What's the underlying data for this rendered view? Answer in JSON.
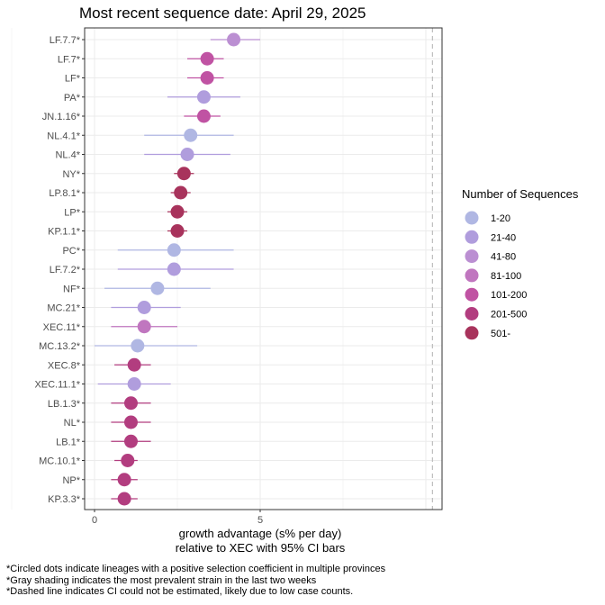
{
  "chart_data": {
    "type": "scatter",
    "title": "Most recent sequence date: April 29, 2025",
    "xlabel_lines": [
      "growth advantage (s% per day)",
      "relative to  XEC  with 95% CI bars"
    ],
    "xticks": [
      0,
      5
    ],
    "xlim": [
      -0.3,
      10.7
    ],
    "dashed_line_x": 10.2,
    "grid": true,
    "legend": {
      "title": "Number of Sequences",
      "position": "right",
      "items": [
        {
          "label": "1-20",
          "color": "#b0b7e3"
        },
        {
          "label": "21-40",
          "color": "#b09ddd"
        },
        {
          "label": "41-80",
          "color": "#bb8fd2"
        },
        {
          "label": "81-100",
          "color": "#c076bf"
        },
        {
          "label": "101-200",
          "color": "#c053a3"
        },
        {
          "label": "201-500",
          "color": "#b23d7f"
        },
        {
          "label": "501-",
          "color": "#a8335c"
        }
      ]
    },
    "lineages": [
      {
        "label": "LF.7.7*",
        "x": 4.2,
        "lo": 3.5,
        "hi": 5.0,
        "group": 2
      },
      {
        "label": "LF.7*",
        "x": 3.4,
        "lo": 2.8,
        "hi": 3.9,
        "group": 4
      },
      {
        "label": "LF*",
        "x": 3.4,
        "lo": 2.8,
        "hi": 3.9,
        "group": 4
      },
      {
        "label": "PA*",
        "x": 3.3,
        "lo": 2.2,
        "hi": 4.4,
        "group": 1
      },
      {
        "label": "JN.1.16*",
        "x": 3.3,
        "lo": 2.7,
        "hi": 3.8,
        "group": 4
      },
      {
        "label": "NL.4.1*",
        "x": 2.9,
        "lo": 1.5,
        "hi": 4.2,
        "group": 0
      },
      {
        "label": "NL.4*",
        "x": 2.8,
        "lo": 1.5,
        "hi": 4.1,
        "group": 1
      },
      {
        "label": "NY*",
        "x": 2.7,
        "lo": 2.4,
        "hi": 3.0,
        "group": 6
      },
      {
        "label": "LP.8.1*",
        "x": 2.6,
        "lo": 2.3,
        "hi": 2.9,
        "group": 6
      },
      {
        "label": "LP*",
        "x": 2.5,
        "lo": 2.2,
        "hi": 2.8,
        "group": 6
      },
      {
        "label": "KP.1.1*",
        "x": 2.5,
        "lo": 2.2,
        "hi": 2.8,
        "group": 6
      },
      {
        "label": "PC*",
        "x": 2.4,
        "lo": 0.7,
        "hi": 4.2,
        "group": 0
      },
      {
        "label": "LF.7.2*",
        "x": 2.4,
        "lo": 0.7,
        "hi": 4.2,
        "group": 1
      },
      {
        "label": "NF*",
        "x": 1.9,
        "lo": 0.3,
        "hi": 3.5,
        "group": 0
      },
      {
        "label": "MC.21*",
        "x": 1.5,
        "lo": 0.5,
        "hi": 2.6,
        "group": 1
      },
      {
        "label": "XEC.11*",
        "x": 1.5,
        "lo": 0.5,
        "hi": 2.5,
        "group": 3
      },
      {
        "label": "MC.13.2*",
        "x": 1.3,
        "lo": 0.0,
        "hi": 3.1,
        "group": 0
      },
      {
        "label": "XEC.8*",
        "x": 1.2,
        "lo": 0.6,
        "hi": 1.7,
        "group": 5
      },
      {
        "label": "XEC.11.1*",
        "x": 1.2,
        "lo": 0.1,
        "hi": 2.3,
        "group": 1
      },
      {
        "label": "LB.1.3*",
        "x": 1.1,
        "lo": 0.5,
        "hi": 1.7,
        "group": 5
      },
      {
        "label": "NL*",
        "x": 1.1,
        "lo": 0.5,
        "hi": 1.7,
        "group": 5
      },
      {
        "label": "LB.1*",
        "x": 1.1,
        "lo": 0.5,
        "hi": 1.7,
        "group": 5
      },
      {
        "label": "MC.10.1*",
        "x": 1.0,
        "lo": 0.6,
        "hi": 1.3,
        "group": 5
      },
      {
        "label": "NP*",
        "x": 0.9,
        "lo": 0.5,
        "hi": 1.3,
        "group": 5
      },
      {
        "label": "KP.3.3*",
        "x": 0.9,
        "lo": 0.5,
        "hi": 1.3,
        "group": 5
      }
    ]
  },
  "footnotes": [
    "*Circled dots indicate lineages with a positive selection coefficient in multiple provinces",
    "*Gray shading indicates the most prevalent strain in the last two weeks",
    "*Dashed line indicates CI could not be estimated, likely due to low case counts."
  ]
}
